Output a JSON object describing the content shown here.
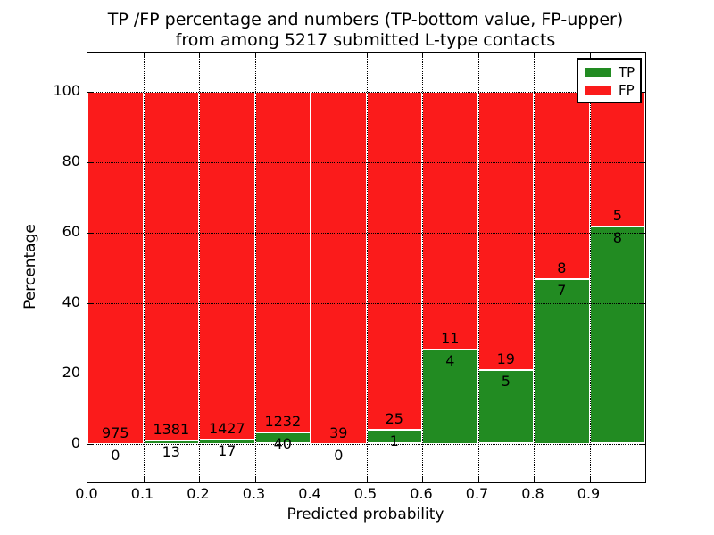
{
  "figure": {
    "title_line1": "TP /FP percentage and numbers (TP-bottom value, FP-upper)",
    "title_line2": "from among 5217 submitted L-type contacts"
  },
  "chart_data": {
    "type": "bar",
    "subtype": "stacked-percentage-histogram",
    "title": "TP /FP percentage and numbers (TP-bottom value, FP-upper) from among 5217 submitted L-type contacts",
    "xlabel": "Predicted probability",
    "ylabel": "Percentage",
    "xlim": [
      0.0,
      1.0
    ],
    "ylim": [
      -11,
      111
    ],
    "grid": true,
    "grid_style": "dotted",
    "legend_position": "upper-right",
    "bin_width": 0.1,
    "total_contacts": 5217,
    "categories": [
      "0.0-0.1",
      "0.1-0.2",
      "0.2-0.3",
      "0.3-0.4",
      "0.4-0.5",
      "0.5-0.6",
      "0.6-0.7",
      "0.7-0.8",
      "0.8-0.9",
      "0.9-1.0"
    ],
    "series": [
      {
        "name": "TP",
        "color": "#228b22",
        "counts": [
          0,
          13,
          17,
          40,
          0,
          1,
          4,
          5,
          7,
          8
        ]
      },
      {
        "name": "FP",
        "color": "#fb1b1b",
        "counts": [
          975,
          1381,
          1427,
          1232,
          39,
          25,
          11,
          19,
          8,
          5
        ]
      }
    ],
    "tp_percent": [
      0.0,
      0.93,
      1.18,
      3.14,
      0.0,
      3.85,
      26.67,
      20.83,
      46.67,
      61.54
    ],
    "xticks": {
      "values": [
        0.0,
        0.1,
        0.2,
        0.3,
        0.4,
        0.5,
        0.6,
        0.7,
        0.8,
        0.9
      ],
      "labels": [
        "0.0",
        "0.1",
        "0.2",
        "0.3",
        "0.4",
        "0.5",
        "0.6",
        "0.7",
        "0.8",
        "0.9"
      ]
    },
    "yticks": {
      "values": [
        0,
        20,
        40,
        60,
        80,
        100
      ],
      "labels": [
        "0",
        "20",
        "40",
        "60",
        "80",
        "100"
      ]
    },
    "legend": [
      {
        "label": "TP",
        "color": "#228b22"
      },
      {
        "label": "FP",
        "color": "#fb1b1b"
      }
    ]
  }
}
